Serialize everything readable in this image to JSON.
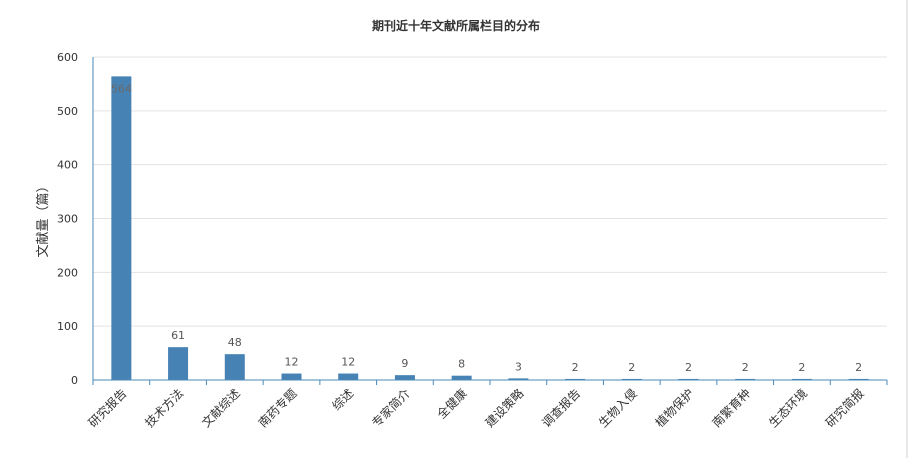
{
  "chart_data": {
    "type": "bar",
    "title": "期刊近十年文献所属栏目的分布",
    "xlabel": "",
    "ylabel": "文献量（篇）",
    "ylim": [
      0,
      600
    ],
    "yticks": [
      0,
      100,
      200,
      300,
      400,
      500,
      600
    ],
    "grid": true,
    "legend": "none",
    "categories": [
      "研究报告",
      "技术方法",
      "文献综述",
      "南药专题",
      "综述",
      "专家简介",
      "全健康",
      "建设策略",
      "调查报告",
      "生物入侵",
      "植物保护",
      "南繁育种",
      "生态环境",
      "研究简报"
    ],
    "values": [
      564,
      61,
      48,
      12,
      12,
      9,
      8,
      3,
      2,
      2,
      2,
      2,
      2,
      2
    ],
    "colors": {
      "bar": "#4682b4",
      "axis": "#4a8ab8",
      "grid": "#e3e3e3",
      "label": "#555555"
    }
  }
}
